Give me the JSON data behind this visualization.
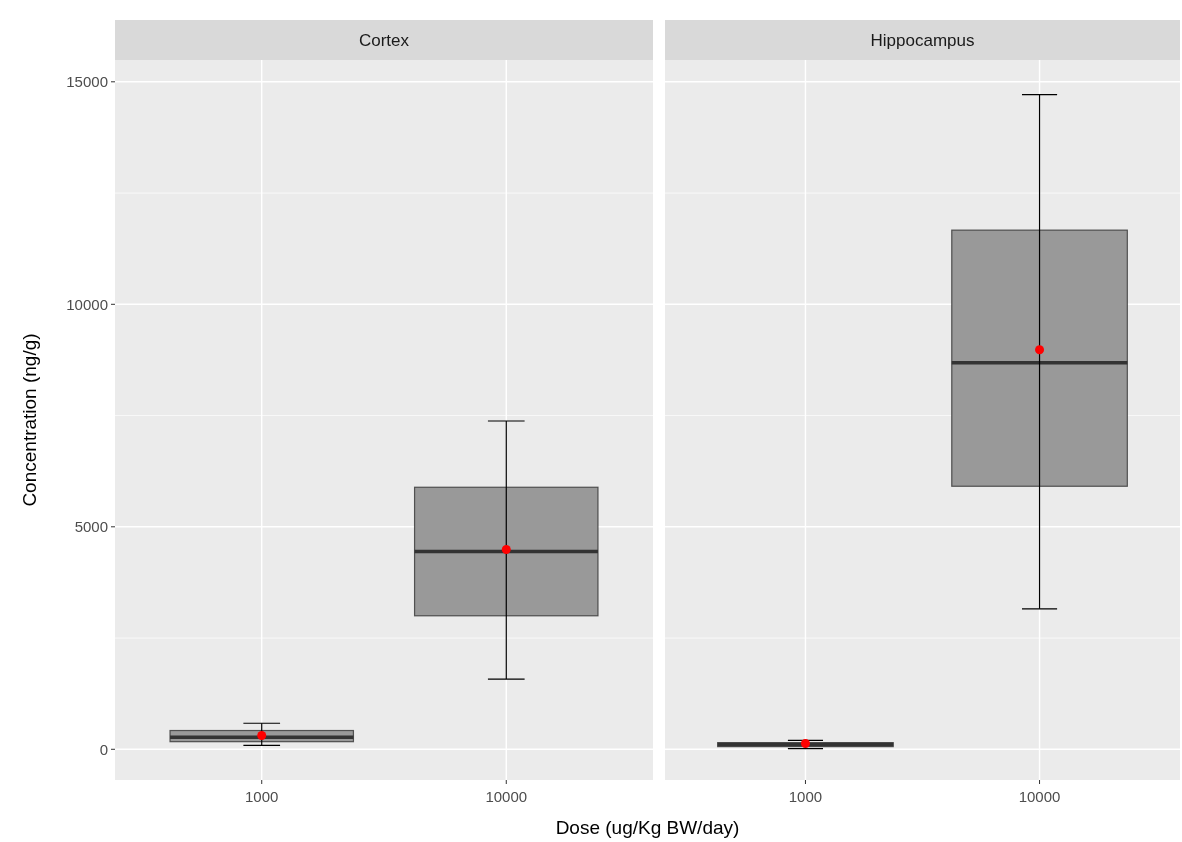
{
  "chart_data": [
    {
      "type": "box",
      "title": "Cortex",
      "xlabel": "Dose (ug/Kg BW/day)",
      "ylabel": "Concentration (ng/g)",
      "categories": [
        "1000",
        "10000"
      ],
      "ylim": [
        -690,
        15490
      ],
      "yticks": [
        0,
        {
          "value": 2500,
          "label": null
        },
        5000,
        {
          "value": 7500,
          "label": null
        },
        10000,
        {
          "value": 12500,
          "label": null
        },
        15000
      ],
      "grid": true,
      "series": [
        {
          "color": "#999999",
          "boxes": [
            {
              "low": 89,
              "q1": 171,
              "median": 273,
              "q3": 422,
              "high": 585,
              "mean": 311
            },
            {
              "low": 1578,
              "q1": 3000,
              "median": 4444,
              "q3": 5889,
              "high": 7378,
              "mean": 4489
            }
          ]
        }
      ]
    },
    {
      "type": "box",
      "title": "Hippocampus",
      "categories": [
        "1000",
        "10000"
      ],
      "ylim": [
        -690,
        15490
      ],
      "yticks": [
        0,
        {
          "value": 2500,
          "label": null
        },
        5000,
        {
          "value": 7500,
          "label": null
        },
        10000,
        {
          "value": 12500,
          "label": null
        },
        15000
      ],
      "grid": true,
      "tick_labels": "x",
      "series": [
        {
          "color": "#999999",
          "boxes": [
            {
              "low": 15,
              "q1": 60,
              "median": 110,
              "q3": 150,
              "high": 200,
              "mean": 130
            },
            {
              "low": 3156,
              "q1": 5911,
              "median": 8689,
              "q3": 11667,
              "high": 14711,
              "mean": 8978
            }
          ]
        }
      ]
    }
  ]
}
